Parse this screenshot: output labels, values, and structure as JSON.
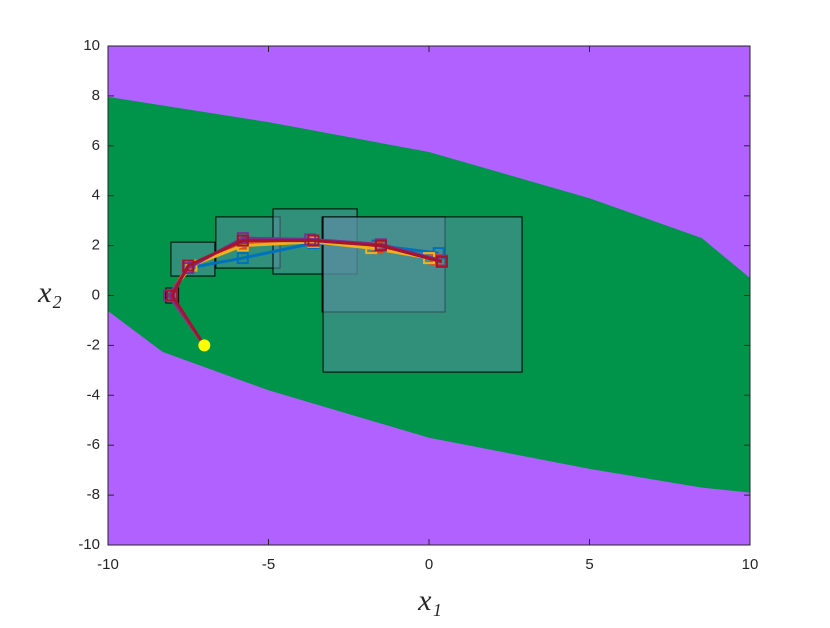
{
  "chart_data": {
    "type": "line",
    "xlabel": "x₁",
    "ylabel": "x₂",
    "xlim": [
      -10,
      10
    ],
    "ylim": [
      -10,
      10
    ],
    "xticks": [
      -10,
      -5,
      0,
      5,
      10
    ],
    "yticks": [
      -10,
      -8,
      -6,
      -4,
      -2,
      0,
      2,
      4,
      6,
      8,
      10
    ],
    "background": "#b061ff",
    "regions": [
      {
        "color": "#00944a",
        "x": [
          -10,
          -5,
          0,
          5,
          8.5,
          10,
          10,
          8.5,
          5,
          0,
          -5,
          -8.3,
          -10
        ],
        "y": [
          7.96,
          6.95,
          5.75,
          3.9,
          2.3,
          0.7,
          -7.9,
          -7.7,
          -6.95,
          -5.7,
          -3.8,
          -2.26,
          -0.62
        ]
      }
    ],
    "boxes": [
      {
        "x": [
          -8.2,
          -7.8
        ],
        "y": [
          -0.3,
          0.3
        ]
      },
      {
        "x": [
          -8.04,
          -6.67
        ],
        "y": [
          0.78,
          2.14
        ]
      },
      {
        "x": [
          -6.64,
          -4.64
        ],
        "y": [
          1.1,
          3.15
        ]
      },
      {
        "x": [
          -4.86,
          -2.24
        ],
        "y": [
          0.86,
          3.47
        ]
      },
      {
        "x": [
          -3.33,
          0.5
        ],
        "y": [
          -0.66,
          3.15
        ]
      },
      {
        "x": [
          -3.3,
          2.9
        ],
        "y": [
          -3.07,
          3.15
        ]
      }
    ],
    "series": [
      {
        "color": "#0072bd",
        "x": [
          -7,
          -8.1,
          -7.5,
          -5.8,
          -3.6,
          -1.6,
          0.3
        ],
        "values": [
          -2,
          0,
          1.1,
          1.5,
          2.1,
          2.0,
          1.7
        ]
      },
      {
        "color": "#d95319",
        "x": [
          -7,
          -8.1,
          -7.5,
          -5.8,
          -3.6,
          -1.6,
          0.2
        ],
        "values": [
          -2,
          0,
          1.2,
          2.1,
          2.2,
          1.9,
          1.45
        ]
      },
      {
        "color": "#edb120",
        "x": [
          -7,
          -8.1,
          -7.4,
          -5.8,
          -3.6,
          -1.8,
          0.0
        ],
        "values": [
          -2,
          0,
          1.2,
          2.0,
          2.15,
          1.9,
          1.5
        ]
      },
      {
        "color": "#7e2f8e",
        "x": [
          -7,
          -8.1,
          -7.5,
          -5.8,
          -3.7,
          -1.5,
          0.4
        ],
        "values": [
          -2,
          0,
          1.1,
          2.3,
          2.25,
          2.05,
          1.4
        ]
      },
      {
        "color": "#a2142f",
        "x": [
          -7,
          -8.0,
          -7.5,
          -5.8,
          -3.6,
          -1.5,
          0.4
        ],
        "values": [
          -2,
          0,
          1.2,
          2.2,
          2.2,
          2.0,
          1.35
        ]
      }
    ],
    "start": {
      "x": -7,
      "y": -2,
      "color": "#ffff00"
    }
  }
}
